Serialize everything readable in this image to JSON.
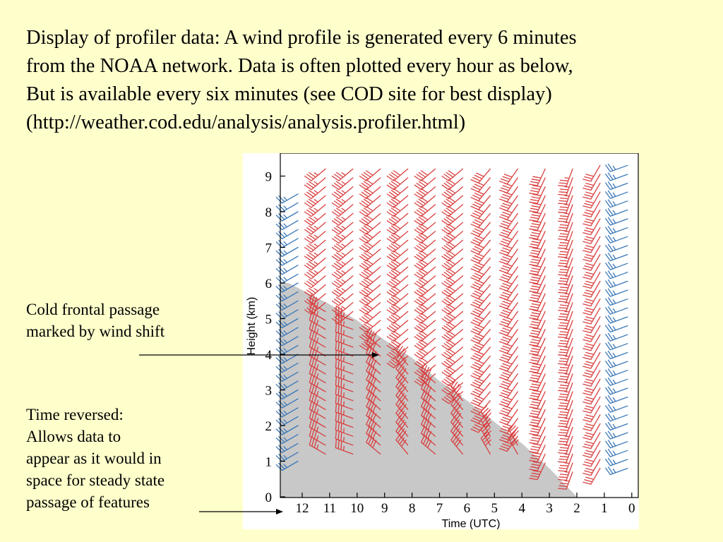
{
  "slide": {
    "heading_lines": [
      "Display of profiler data: A wind profile is generated every 6 minutes",
      "from the NOAA network.  Data is often plotted every hour as below,",
      "But is available every six minutes (see COD site for best display)",
      "(http://weather.cod.edu/analysis/analysis.profiler.html)"
    ],
    "note_cold_front": [
      "Cold frontal passage",
      "marked by wind shift"
    ],
    "note_time_reversed": [
      "Time reversed:",
      "Allows data to",
      "appear as it would in",
      "space for steady state",
      "passage of features"
    ]
  },
  "chart_data": {
    "type": "wind_barb_time_height",
    "xlabel": "Time (UTC)",
    "ylabel": "Height (km)",
    "x_tick_labels": [
      "12",
      "11",
      "10",
      "9",
      "8",
      "7",
      "6",
      "5",
      "4",
      "3",
      "2",
      "1",
      "0"
    ],
    "x_axis_reversed": true,
    "y_ticks": [
      0,
      1,
      2,
      3,
      4,
      5,
      6,
      7,
      8,
      9
    ],
    "ylim": [
      0,
      9.5
    ],
    "grid": false,
    "cold_air_boundary": {
      "color": "#C8C8C8",
      "points": [
        {
          "time": 12.5,
          "height_km": 6.0
        },
        {
          "time": 11,
          "height_km": 5.4
        },
        {
          "time": 10,
          "height_km": 4.95
        },
        {
          "time": 9,
          "height_km": 4.4
        },
        {
          "time": 8,
          "height_km": 3.9
        },
        {
          "time": 7,
          "height_km": 3.25
        },
        {
          "time": 6,
          "height_km": 2.7
        },
        {
          "time": 5,
          "height_km": 2.1
        },
        {
          "time": 4,
          "height_km": 1.5
        },
        {
          "time": 3,
          "height_km": 0.8
        },
        {
          "time": 2,
          "height_km": 0.0
        }
      ]
    },
    "series": [
      {
        "color": "#3A78B8",
        "columns": [
          "12",
          "0"
        ]
      },
      {
        "color": "#D94040",
        "columns": [
          "11",
          "10",
          "9",
          "8",
          "7",
          "6",
          "5",
          "4",
          "3",
          "2",
          "1"
        ]
      }
    ],
    "columns": [
      {
        "time": "12",
        "color": "#3A78B8",
        "top_km": 8.5,
        "bottom_km": 0.8,
        "upper_dir": 240,
        "lower_dir": 300,
        "speed_kt": 25
      },
      {
        "time": "11",
        "color": "#D94040",
        "top_km": 9.2,
        "bottom_km": 1.0,
        "upper_dir": 230,
        "lower_dir": 300,
        "speed_kt": 35
      },
      {
        "time": "10",
        "color": "#D94040",
        "top_km": 9.2,
        "bottom_km": 1.0,
        "upper_dir": 230,
        "lower_dir": 290,
        "speed_kt": 35
      },
      {
        "time": "9",
        "color": "#D94040",
        "top_km": 9.2,
        "bottom_km": 1.0,
        "upper_dir": 230,
        "lower_dir": 310,
        "speed_kt": 40
      },
      {
        "time": "8",
        "color": "#D94040",
        "top_km": 9.2,
        "bottom_km": 1.0,
        "upper_dir": 230,
        "lower_dir": 320,
        "speed_kt": 40
      },
      {
        "time": "7",
        "color": "#D94040",
        "top_km": 9.2,
        "bottom_km": 1.0,
        "upper_dir": 230,
        "lower_dir": 310,
        "speed_kt": 40
      },
      {
        "time": "6",
        "color": "#D94040",
        "top_km": 9.2,
        "bottom_km": 1.0,
        "upper_dir": 230,
        "lower_dir": 320,
        "speed_kt": 40
      },
      {
        "time": "5",
        "color": "#D94040",
        "top_km": 9.2,
        "bottom_km": 1.0,
        "upper_dir": 220,
        "lower_dir": 330,
        "speed_kt": 40
      },
      {
        "time": "4",
        "color": "#D94040",
        "top_km": 9.2,
        "bottom_km": 1.0,
        "upper_dir": 215,
        "lower_dir": 330,
        "speed_kt": 40
      },
      {
        "time": "3",
        "color": "#D94040",
        "top_km": 9.2,
        "bottom_km": 0.9,
        "upper_dir": 205,
        "lower_dir": 330,
        "speed_kt": 40
      },
      {
        "time": "2",
        "color": "#D94040",
        "top_km": 9.2,
        "bottom_km": 0.6,
        "upper_dir": 200,
        "lower_dir": 210,
        "speed_kt": 35
      },
      {
        "time": "1",
        "color": "#D94040",
        "top_km": 9.3,
        "bottom_km": 0.8,
        "upper_dir": 210,
        "lower_dir": 220,
        "speed_kt": 30
      },
      {
        "time": "0",
        "color": "#3A78B8",
        "top_km": 9.3,
        "bottom_km": 0.6,
        "upper_dir": 250,
        "lower_dir": 230,
        "speed_kt": 25
      }
    ],
    "barb_spacing_km": 0.25
  }
}
